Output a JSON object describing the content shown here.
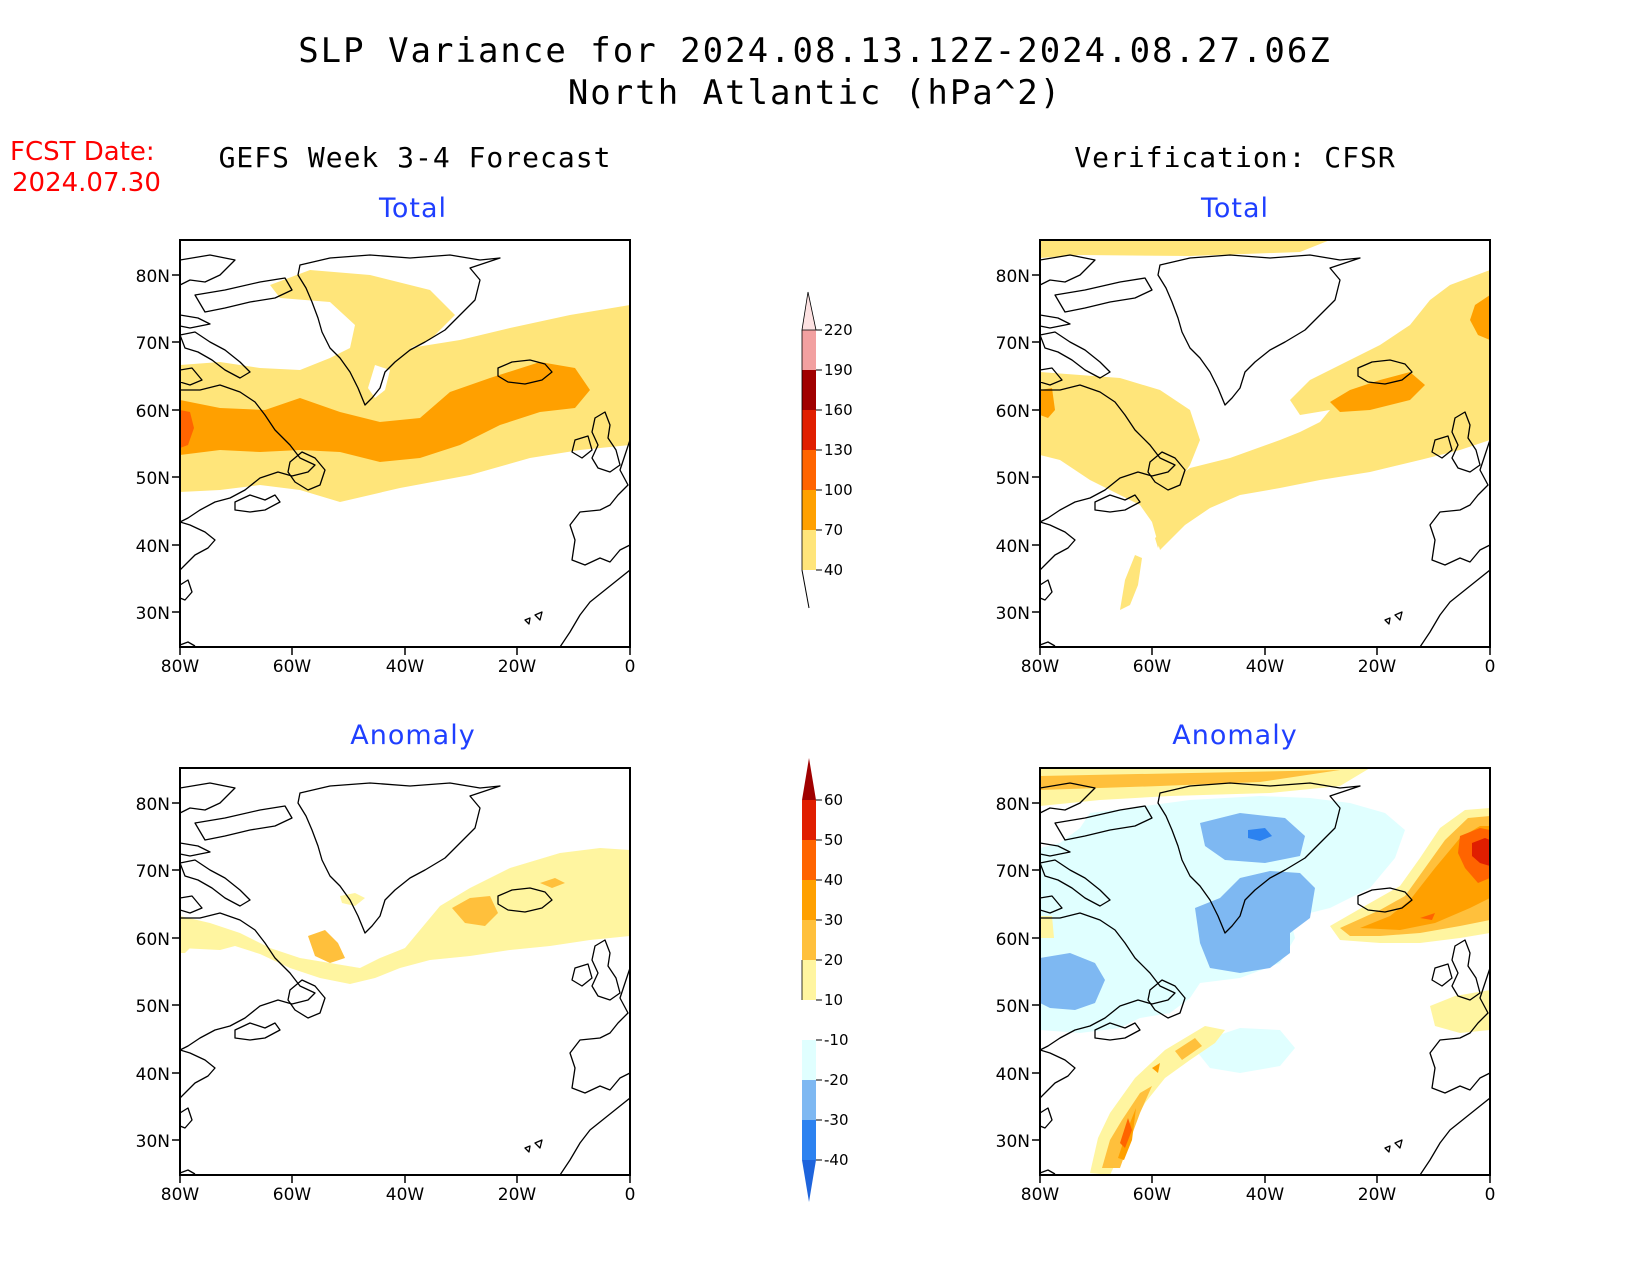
{
  "title": {
    "line1": "SLP Variance for 2024.08.13.12Z-2024.08.27.06Z",
    "line2": "North Atlantic (hPa^2)"
  },
  "fcst": {
    "line1": "FCST Date:",
    "line2": "2024.07.30"
  },
  "columns": {
    "left": "GEFS Week 3-4 Forecast",
    "right": "Verification: CFSR"
  },
  "panel_titles": {
    "total": "Total",
    "anomaly": "Anomaly"
  },
  "axes": {
    "lat_labels": [
      "80N",
      "70N",
      "60N",
      "50N",
      "40N",
      "30N"
    ],
    "lon_labels": [
      "80W",
      "60W",
      "40W",
      "20W",
      "0"
    ]
  },
  "colorbars": {
    "total": {
      "levels": [
        "40",
        "70",
        "100",
        "130",
        "160",
        "190",
        "220"
      ],
      "colors": [
        "#ffe57a",
        "#ffa000",
        "#ff6400",
        "#e01e00",
        "#a00000",
        "#f2a0a0",
        "#fde2e2"
      ]
    },
    "anomaly": {
      "levels": [
        "-40",
        "-30",
        "-20",
        "-10",
        "10",
        "20",
        "30",
        "40",
        "50",
        "60"
      ],
      "colors": [
        "#1e64dc",
        "#2c82f0",
        "#7eb8f2",
        "#e0ffff",
        "#ffffff",
        "#fff5a0",
        "#ffc03c",
        "#ffa000",
        "#ff6400",
        "#e01e00",
        "#a00000"
      ]
    }
  },
  "colors": {
    "title_red": "#ff0000",
    "subtitle_blue": "#1f3fff"
  }
}
